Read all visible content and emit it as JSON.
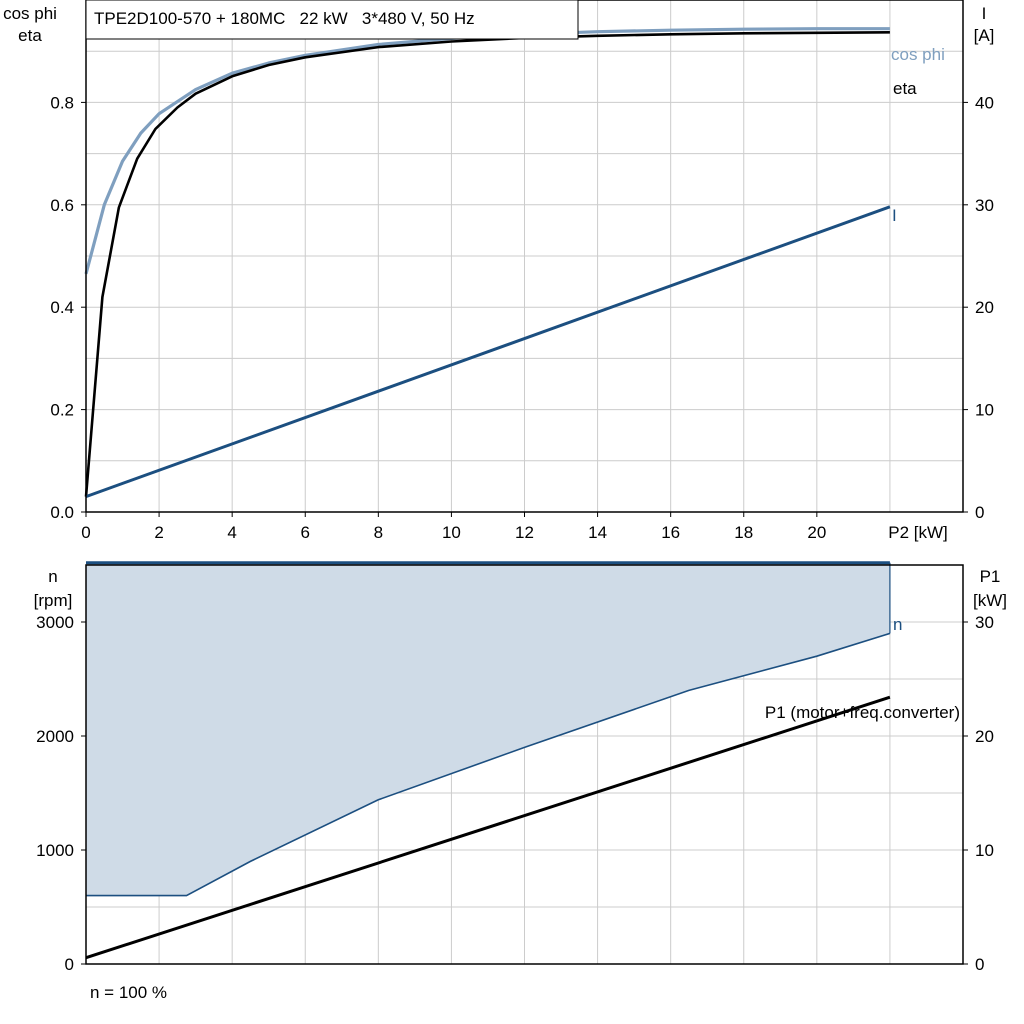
{
  "colors": {
    "cos_phi": "#7f9fbf",
    "eta": "#000000",
    "current": "#1c4f80",
    "speed": "#1c4f80",
    "p1": "#000000",
    "band_fill": "#cfdbe7",
    "band_edge": "#1c4f80",
    "grid": "#cccccc"
  },
  "chart_data": [
    {
      "name": "efficiency-current",
      "type": "line",
      "title": "TPE2D100-570 + 180MC   22 kW   3*480 V, 50 Hz",
      "xlabel": "P2 [kW]",
      "ylabel_left": [
        "cos phi",
        "eta"
      ],
      "ylabel_right": [
        "I",
        "[A]"
      ],
      "xlim": [
        0,
        24
      ],
      "ylim_left": [
        0,
        1.0
      ],
      "ylim_right": [
        0,
        50
      ],
      "x_ticks": [
        "0",
        "2",
        "4",
        "6",
        "8",
        "10",
        "12",
        "14",
        "16",
        "18",
        "20"
      ],
      "y_ticks_left": [
        "0.0",
        "0.2",
        "0.4",
        "0.6",
        "0.8"
      ],
      "y_ticks_right": [
        "0",
        "10",
        "20",
        "30",
        "40"
      ],
      "grid": true,
      "series": [
        {
          "name": "cos phi",
          "axis": "left",
          "x": [
            0,
            0.5,
            1,
            1.5,
            2,
            3,
            4,
            5,
            6,
            8,
            10,
            12,
            14,
            16,
            18,
            20,
            22
          ],
          "y": [
            0.465,
            0.6,
            0.685,
            0.74,
            0.778,
            0.825,
            0.857,
            0.877,
            0.892,
            0.913,
            0.925,
            0.933,
            0.938,
            0.941,
            0.943,
            0.944,
            0.944
          ]
        },
        {
          "name": "eta",
          "axis": "left",
          "x": [
            0,
            0.45,
            0.9,
            1.4,
            1.9,
            2.5,
            3,
            4,
            5,
            6,
            8,
            10,
            12,
            14,
            16,
            18,
            20,
            22
          ],
          "y": [
            0.03,
            0.42,
            0.595,
            0.69,
            0.748,
            0.79,
            0.817,
            0.851,
            0.873,
            0.888,
            0.908,
            0.919,
            0.926,
            0.93,
            0.933,
            0.935,
            0.936,
            0.937
          ]
        },
        {
          "name": "I",
          "axis": "right",
          "x": [
            0,
            22
          ],
          "y": [
            1.5,
            29.8
          ]
        }
      ]
    },
    {
      "name": "speed-power",
      "type": "area",
      "xlim": [
        0,
        24
      ],
      "ylabel_left": [
        "n",
        "[rpm]"
      ],
      "ylabel_right": [
        "P1",
        "[kW]"
      ],
      "ylim_left": [
        0,
        3500
      ],
      "ylim_right": [
        0,
        35
      ],
      "y_ticks_left": [
        "0",
        "1000",
        "2000",
        "3000"
      ],
      "y_ticks_right": [
        "0",
        "10",
        "20",
        "30"
      ],
      "grid": true,
      "band": {
        "upper": {
          "x": [
            0,
            22
          ],
          "y": [
            3520,
            3520
          ]
        },
        "lower": {
          "x": [
            0,
            2.75,
            4.5,
            8,
            12,
            16.5,
            20,
            22
          ],
          "y": [
            600,
            600,
            900,
            1440,
            1900,
            2400,
            2700,
            2900
          ]
        }
      },
      "series": [
        {
          "name": "n",
          "axis": "left",
          "x": [
            0,
            22
          ],
          "y": [
            3520,
            3520
          ]
        },
        {
          "name": "P1 (motor+freq.converter)",
          "axis": "right",
          "x": [
            0,
            22
          ],
          "y": [
            0.55,
            23.4
          ]
        }
      ],
      "annotation": "n = 100 %"
    }
  ]
}
